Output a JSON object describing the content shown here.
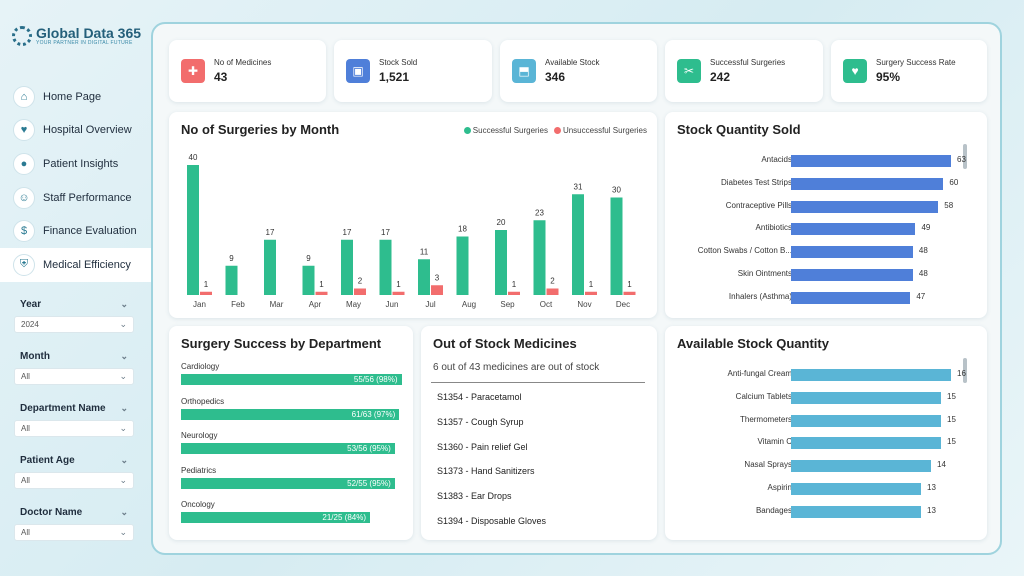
{
  "brand": {
    "name": "Global Data 365",
    "tagline": "YOUR PARTNER IN DIGITAL FUTURE"
  },
  "nav": [
    {
      "label": "Home Page",
      "icon": "home-icon"
    },
    {
      "label": "Hospital Overview",
      "icon": "heart-icon"
    },
    {
      "label": "Patient Insights",
      "icon": "patient-icon"
    },
    {
      "label": "Staff Performance",
      "icon": "staff-icon"
    },
    {
      "label": "Finance Evaluation",
      "icon": "finance-icon"
    },
    {
      "label": "Medical Efficiency",
      "icon": "shield-icon",
      "active": true
    }
  ],
  "filters": [
    {
      "label": "Year",
      "value": "2024"
    },
    {
      "label": "Month",
      "value": "All"
    },
    {
      "label": "Department Name",
      "value": "All"
    },
    {
      "label": "Patient Age",
      "value": "All"
    },
    {
      "label": "Doctor Name",
      "value": "All"
    }
  ],
  "kpis": [
    {
      "label": "No of Medicines",
      "value": "43",
      "color": "#f26d6d",
      "icon": "medicine-icon"
    },
    {
      "label": "Stock Sold",
      "value": "1,521",
      "color": "#4f7fd9",
      "icon": "box-icon"
    },
    {
      "label": "Available Stock",
      "value": "346",
      "color": "#5ab5d6",
      "icon": "stock-icon"
    },
    {
      "label": "Successful Surgeries",
      "value": "242",
      "color": "#2ebd8e",
      "icon": "surgery-icon"
    },
    {
      "label": "Surgery Success Rate",
      "value": "95%",
      "color": "#2ebd8e",
      "icon": "heart-check-icon"
    }
  ],
  "colors": {
    "success": "#2ebd8e",
    "fail": "#f26d6d",
    "sold": "#4f7fd9",
    "avail": "#5ab5d6"
  },
  "surgeries": {
    "title": "No of Surgeries by Month",
    "legend": [
      "Successful Surgeries",
      "Unsuccessful Surgeries"
    ],
    "chart_data": {
      "type": "bar",
      "categories": [
        "Jan",
        "Feb",
        "Mar",
        "Apr",
        "May",
        "Jun",
        "Jul",
        "Aug",
        "Sep",
        "Oct",
        "Nov",
        "Dec"
      ],
      "series": [
        {
          "name": "Successful Surgeries",
          "values": [
            40,
            9,
            17,
            9,
            17,
            17,
            11,
            18,
            20,
            23,
            31,
            30
          ],
          "labels": [
            "40",
            "9",
            "17",
            "9",
            "17",
            "17",
            "11",
            "18",
            "20",
            "23",
            "31",
            "30"
          ]
        },
        {
          "name": "Unsuccessful Surgeries",
          "values": [
            1,
            0,
            0,
            1,
            2,
            1,
            3,
            0,
            1,
            2,
            1,
            1
          ],
          "labels": [
            "1",
            "",
            "",
            "1",
            "2",
            "1",
            "3",
            "",
            "1",
            "2",
            "1",
            "1"
          ]
        }
      ]
    }
  },
  "stock_sold": {
    "title": "Stock Quantity Sold",
    "chart_data": {
      "type": "bar",
      "categories": [
        "Antacids",
        "Diabetes Test Strips",
        "Contraceptive Pills",
        "Antibiotics",
        "Cotton Swabs / Cotton B...",
        "Skin Ointments",
        "Inhalers (Asthma)"
      ],
      "values": [
        63,
        60,
        58,
        49,
        48,
        48,
        47
      ]
    }
  },
  "departments": {
    "title": "Surgery Success by Department",
    "items": [
      {
        "name": "Cardiology",
        "label": "55/56 (98%)",
        "rate": 98
      },
      {
        "name": "Orthopedics",
        "label": "61/63 (97%)",
        "rate": 97
      },
      {
        "name": "Neurology",
        "label": "53/56 (95%)",
        "rate": 95
      },
      {
        "name": "Pediatrics",
        "label": "52/55 (95%)",
        "rate": 95
      },
      {
        "name": "Oncology",
        "label": "21/25 (84%)",
        "rate": 84
      }
    ]
  },
  "out_of_stock": {
    "title": "Out of Stock Medicines",
    "subtitle": "6 out of 43 medicines are out of stock",
    "items": [
      "S1354 - Paracetamol",
      "S1357 - Cough Syrup",
      "S1360 - Pain relief Gel",
      "S1373 - Hand Sanitizers",
      "S1383 - Ear Drops",
      "S1394 - Disposable Gloves"
    ]
  },
  "available_stock": {
    "title": "Available Stock Quantity",
    "chart_data": {
      "type": "bar",
      "categories": [
        "Anti-fungal Cream",
        "Calcium Tablets",
        "Thermometers",
        "Vitamin C",
        "Nasal Sprays",
        "Aspirin",
        "Bandages"
      ],
      "values": [
        16,
        15,
        15,
        15,
        14,
        13,
        13
      ]
    }
  }
}
